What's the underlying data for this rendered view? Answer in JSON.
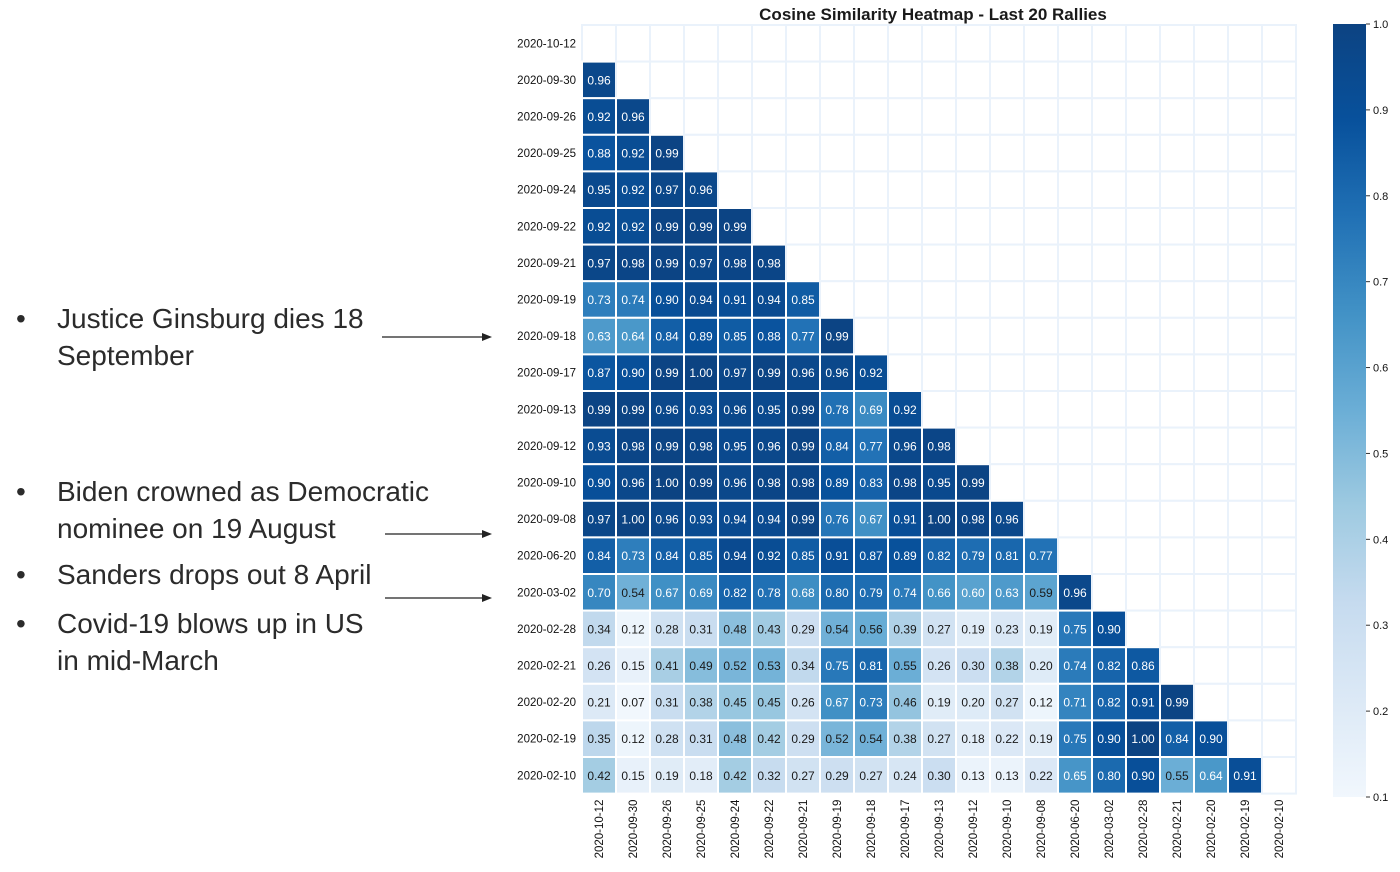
{
  "annotations": [
    {
      "bullet": "•",
      "lines": [
        "Justice Ginsburg dies 18",
        "September"
      ]
    },
    {
      "bullet": "•",
      "lines": [
        "Biden crowned as Democratic",
        "nominee on 19 August"
      ]
    },
    {
      "bullet": "•",
      "lines": [
        "Sanders drops out 8 April"
      ]
    },
    {
      "bullet": "•",
      "lines": [
        "Covid-19 blows up in US",
        "in mid-March"
      ]
    }
  ],
  "chart_data": {
    "type": "heatmap",
    "title": "Cosine Similarity Heatmap - Last 20 Rallies",
    "labels": [
      "2020-10-12",
      "2020-09-30",
      "2020-09-26",
      "2020-09-25",
      "2020-09-24",
      "2020-09-22",
      "2020-09-21",
      "2020-09-19",
      "2020-09-18",
      "2020-09-17",
      "2020-09-13",
      "2020-09-12",
      "2020-09-10",
      "2020-09-08",
      "2020-06-20",
      "2020-03-02",
      "2020-02-28",
      "2020-02-21",
      "2020-02-20",
      "2020-02-19",
      "2020-02-10"
    ],
    "mask": "upper triangle incl. diagonal",
    "values": [
      [],
      [
        0.96
      ],
      [
        0.92,
        0.96
      ],
      [
        0.88,
        0.92,
        0.99
      ],
      [
        0.95,
        0.92,
        0.97,
        0.96
      ],
      [
        0.92,
        0.92,
        0.99,
        0.99,
        0.99
      ],
      [
        0.97,
        0.98,
        0.99,
        0.97,
        0.98,
        0.98
      ],
      [
        0.73,
        0.74,
        0.9,
        0.94,
        0.91,
        0.94,
        0.85
      ],
      [
        0.63,
        0.64,
        0.84,
        0.89,
        0.85,
        0.88,
        0.77,
        0.99
      ],
      [
        0.87,
        0.9,
        0.99,
        1.0,
        0.97,
        0.99,
        0.96,
        0.96,
        0.92
      ],
      [
        0.99,
        0.99,
        0.96,
        0.93,
        0.96,
        0.95,
        0.99,
        0.78,
        0.69,
        0.92
      ],
      [
        0.93,
        0.98,
        0.99,
        0.98,
        0.95,
        0.96,
        0.99,
        0.84,
        0.77,
        0.96,
        0.98
      ],
      [
        0.9,
        0.96,
        1.0,
        0.99,
        0.96,
        0.98,
        0.98,
        0.89,
        0.83,
        0.98,
        0.95,
        0.99
      ],
      [
        0.97,
        1.0,
        0.96,
        0.93,
        0.94,
        0.94,
        0.99,
        0.76,
        0.67,
        0.91,
        1.0,
        0.98,
        0.96
      ],
      [
        0.84,
        0.73,
        0.84,
        0.85,
        0.94,
        0.92,
        0.85,
        0.91,
        0.87,
        0.89,
        0.82,
        0.79,
        0.81,
        0.77
      ],
      [
        0.7,
        0.54,
        0.67,
        0.69,
        0.82,
        0.78,
        0.68,
        0.8,
        0.79,
        0.74,
        0.66,
        0.6,
        0.63,
        0.59,
        0.96
      ],
      [
        0.34,
        0.12,
        0.28,
        0.31,
        0.48,
        0.43,
        0.29,
        0.54,
        0.56,
        0.39,
        0.27,
        0.19,
        0.23,
        0.19,
        0.75,
        0.9
      ],
      [
        0.26,
        0.15,
        0.41,
        0.49,
        0.52,
        0.53,
        0.34,
        0.75,
        0.81,
        0.55,
        0.26,
        0.3,
        0.38,
        0.2,
        0.74,
        0.82,
        0.86
      ],
      [
        0.21,
        0.07,
        0.31,
        0.38,
        0.45,
        0.45,
        0.26,
        0.67,
        0.73,
        0.46,
        0.19,
        0.2,
        0.27,
        0.12,
        0.71,
        0.82,
        0.91,
        0.99
      ],
      [
        0.35,
        0.12,
        0.28,
        0.31,
        0.48,
        0.42,
        0.29,
        0.52,
        0.54,
        0.38,
        0.27,
        0.18,
        0.22,
        0.19,
        0.75,
        0.9,
        1.0,
        0.84,
        0.9
      ],
      [
        0.42,
        0.15,
        0.19,
        0.18,
        0.42,
        0.32,
        0.27,
        0.29,
        0.27,
        0.24,
        0.3,
        0.13,
        0.13,
        0.22,
        0.65,
        0.8,
        0.9,
        0.55,
        0.64,
        0.91
      ]
    ],
    "value_format": "2 decimals",
    "colormap": "Blues",
    "vmin": 0.1,
    "vmax": 1.0,
    "colorbar_ticks": [
      "0.1",
      "0.2",
      "0.3",
      "0.4",
      "0.5",
      "0.6",
      "0.7",
      "0.8",
      "0.9",
      "1.0"
    ],
    "grid_line_color": "#eaf2fb"
  }
}
